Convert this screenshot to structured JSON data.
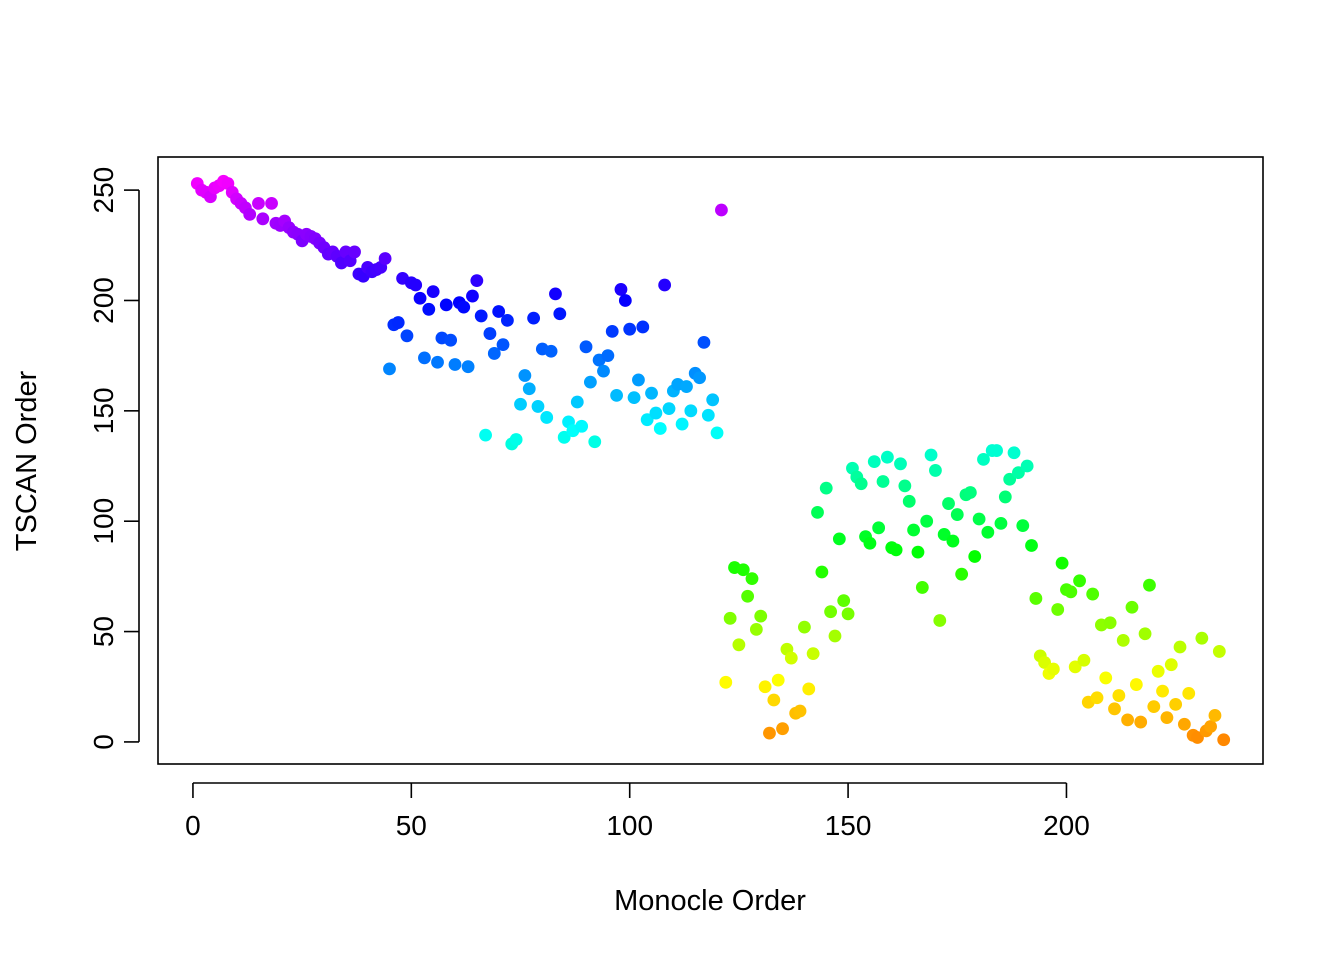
{
  "chart_data": {
    "type": "scatter",
    "title": "",
    "xlabel": "Monocle Order",
    "ylabel": "TSCAN Order",
    "xlim": [
      -8,
      245
    ],
    "ylim": [
      -10,
      265
    ],
    "xticks": [
      "0",
      "50",
      "100",
      "150",
      "200"
    ],
    "yticks": [
      "0",
      "50",
      "100",
      "150",
      "200",
      "250"
    ],
    "grid": false,
    "legend": "none",
    "color_scale": "rainbow by TSCAN order: orange (low) through yellow, green, cyan, blue, violet to magenta (high)",
    "series": [
      {
        "points": [
          [
            1,
            253
          ],
          [
            2,
            250
          ],
          [
            3,
            249
          ],
          [
            4,
            247
          ],
          [
            5,
            251
          ],
          [
            6,
            252
          ],
          [
            7,
            254
          ],
          [
            8,
            253
          ],
          [
            9,
            249
          ],
          [
            10,
            246
          ],
          [
            11,
            244
          ],
          [
            12,
            242
          ],
          [
            13,
            239
          ],
          [
            15,
            244
          ],
          [
            16,
            237
          ],
          [
            18,
            244
          ],
          [
            19,
            235
          ],
          [
            20,
            234
          ],
          [
            21,
            236
          ],
          [
            22,
            233
          ],
          [
            23,
            231
          ],
          [
            24,
            230
          ],
          [
            25,
            227
          ],
          [
            26,
            230
          ],
          [
            27,
            229
          ],
          [
            28,
            228
          ],
          [
            29,
            226
          ],
          [
            30,
            224
          ],
          [
            31,
            221
          ],
          [
            32,
            222
          ],
          [
            33,
            220
          ],
          [
            34,
            217
          ],
          [
            35,
            222
          ],
          [
            36,
            218
          ],
          [
            37,
            222
          ],
          [
            38,
            212
          ],
          [
            39,
            211
          ],
          [
            40,
            215
          ],
          [
            41,
            213
          ],
          [
            42,
            214
          ],
          [
            43,
            215
          ],
          [
            44,
            219
          ],
          [
            45,
            169
          ],
          [
            46,
            189
          ],
          [
            47,
            190
          ],
          [
            48,
            210
          ],
          [
            49,
            184
          ],
          [
            50,
            208
          ],
          [
            51,
            207
          ],
          [
            52,
            201
          ],
          [
            53,
            174
          ],
          [
            54,
            196
          ],
          [
            55,
            204
          ],
          [
            56,
            172
          ],
          [
            57,
            183
          ],
          [
            58,
            198
          ],
          [
            59,
            182
          ],
          [
            60,
            171
          ],
          [
            61,
            199
          ],
          [
            62,
            197
          ],
          [
            63,
            170
          ],
          [
            64,
            202
          ],
          [
            65,
            209
          ],
          [
            66,
            193
          ],
          [
            67,
            139
          ],
          [
            68,
            185
          ],
          [
            69,
            176
          ],
          [
            70,
            195
          ],
          [
            71,
            180
          ],
          [
            72,
            191
          ],
          [
            73,
            135
          ],
          [
            74,
            137
          ],
          [
            75,
            153
          ],
          [
            76,
            166
          ],
          [
            77,
            160
          ],
          [
            78,
            192
          ],
          [
            79,
            152
          ],
          [
            80,
            178
          ],
          [
            81,
            147
          ],
          [
            82,
            177
          ],
          [
            83,
            203
          ],
          [
            84,
            194
          ],
          [
            85,
            138
          ],
          [
            86,
            145
          ],
          [
            87,
            141
          ],
          [
            88,
            154
          ],
          [
            89,
            143
          ],
          [
            90,
            179
          ],
          [
            91,
            163
          ],
          [
            92,
            136
          ],
          [
            93,
            173
          ],
          [
            94,
            168
          ],
          [
            95,
            175
          ],
          [
            96,
            186
          ],
          [
            97,
            157
          ],
          [
            98,
            205
          ],
          [
            99,
            200
          ],
          [
            100,
            187
          ],
          [
            101,
            156
          ],
          [
            102,
            164
          ],
          [
            103,
            188
          ],
          [
            104,
            146
          ],
          [
            105,
            158
          ],
          [
            106,
            149
          ],
          [
            107,
            142
          ],
          [
            108,
            207
          ],
          [
            109,
            151
          ],
          [
            110,
            159
          ],
          [
            111,
            162
          ],
          [
            112,
            144
          ],
          [
            113,
            161
          ],
          [
            114,
            150
          ],
          [
            115,
            167
          ],
          [
            116,
            165
          ],
          [
            117,
            181
          ],
          [
            118,
            148
          ],
          [
            119,
            155
          ],
          [
            120,
            140
          ],
          [
            121,
            241
          ],
          [
            122,
            27
          ],
          [
            123,
            56
          ],
          [
            124,
            79
          ],
          [
            125,
            44
          ],
          [
            126,
            78
          ],
          [
            127,
            66
          ],
          [
            128,
            74
          ],
          [
            129,
            51
          ],
          [
            130,
            57
          ],
          [
            131,
            25
          ],
          [
            132,
            4
          ],
          [
            133,
            19
          ],
          [
            134,
            28
          ],
          [
            135,
            6
          ],
          [
            136,
            42
          ],
          [
            137,
            38
          ],
          [
            138,
            13
          ],
          [
            139,
            14
          ],
          [
            140,
            52
          ],
          [
            141,
            24
          ],
          [
            142,
            40
          ],
          [
            143,
            104
          ],
          [
            144,
            77
          ],
          [
            145,
            115
          ],
          [
            146,
            59
          ],
          [
            147,
            48
          ],
          [
            148,
            92
          ],
          [
            149,
            64
          ],
          [
            150,
            58
          ],
          [
            151,
            124
          ],
          [
            152,
            120
          ],
          [
            153,
            117
          ],
          [
            154,
            93
          ],
          [
            155,
            90
          ],
          [
            156,
            127
          ],
          [
            157,
            97
          ],
          [
            158,
            118
          ],
          [
            159,
            129
          ],
          [
            160,
            88
          ],
          [
            161,
            87
          ],
          [
            162,
            126
          ],
          [
            163,
            116
          ],
          [
            164,
            109
          ],
          [
            165,
            96
          ],
          [
            166,
            86
          ],
          [
            167,
            70
          ],
          [
            168,
            100
          ],
          [
            169,
            130
          ],
          [
            170,
            123
          ],
          [
            171,
            55
          ],
          [
            172,
            94
          ],
          [
            173,
            108
          ],
          [
            174,
            91
          ],
          [
            175,
            103
          ],
          [
            176,
            76
          ],
          [
            177,
            112
          ],
          [
            178,
            113
          ],
          [
            179,
            84
          ],
          [
            180,
            101
          ],
          [
            181,
            128
          ],
          [
            182,
            95
          ],
          [
            183,
            132
          ],
          [
            184,
            132
          ],
          [
            185,
            99
          ],
          [
            186,
            111
          ],
          [
            187,
            119
          ],
          [
            188,
            131
          ],
          [
            189,
            122
          ],
          [
            190,
            98
          ],
          [
            191,
            125
          ],
          [
            192,
            89
          ],
          [
            193,
            65
          ],
          [
            194,
            39
          ],
          [
            195,
            36
          ],
          [
            196,
            31
          ],
          [
            197,
            33
          ],
          [
            198,
            60
          ],
          [
            199,
            81
          ],
          [
            200,
            69
          ],
          [
            201,
            68
          ],
          [
            202,
            34
          ],
          [
            203,
            73
          ],
          [
            204,
            37
          ],
          [
            205,
            18
          ],
          [
            206,
            67
          ],
          [
            207,
            20
          ],
          [
            208,
            53
          ],
          [
            209,
            29
          ],
          [
            210,
            54
          ],
          [
            211,
            15
          ],
          [
            212,
            21
          ],
          [
            213,
            46
          ],
          [
            214,
            10
          ],
          [
            215,
            61
          ],
          [
            216,
            26
          ],
          [
            217,
            9
          ],
          [
            218,
            49
          ],
          [
            219,
            71
          ],
          [
            220,
            16
          ],
          [
            221,
            32
          ],
          [
            222,
            23
          ],
          [
            223,
            11
          ],
          [
            224,
            35
          ],
          [
            225,
            17
          ],
          [
            226,
            43
          ],
          [
            227,
            8
          ],
          [
            228,
            22
          ],
          [
            229,
            3
          ],
          [
            230,
            2
          ],
          [
            231,
            47
          ],
          [
            232,
            5
          ],
          [
            233,
            7
          ],
          [
            234,
            12
          ],
          [
            235,
            41
          ],
          [
            236,
            1
          ]
        ]
      }
    ]
  }
}
